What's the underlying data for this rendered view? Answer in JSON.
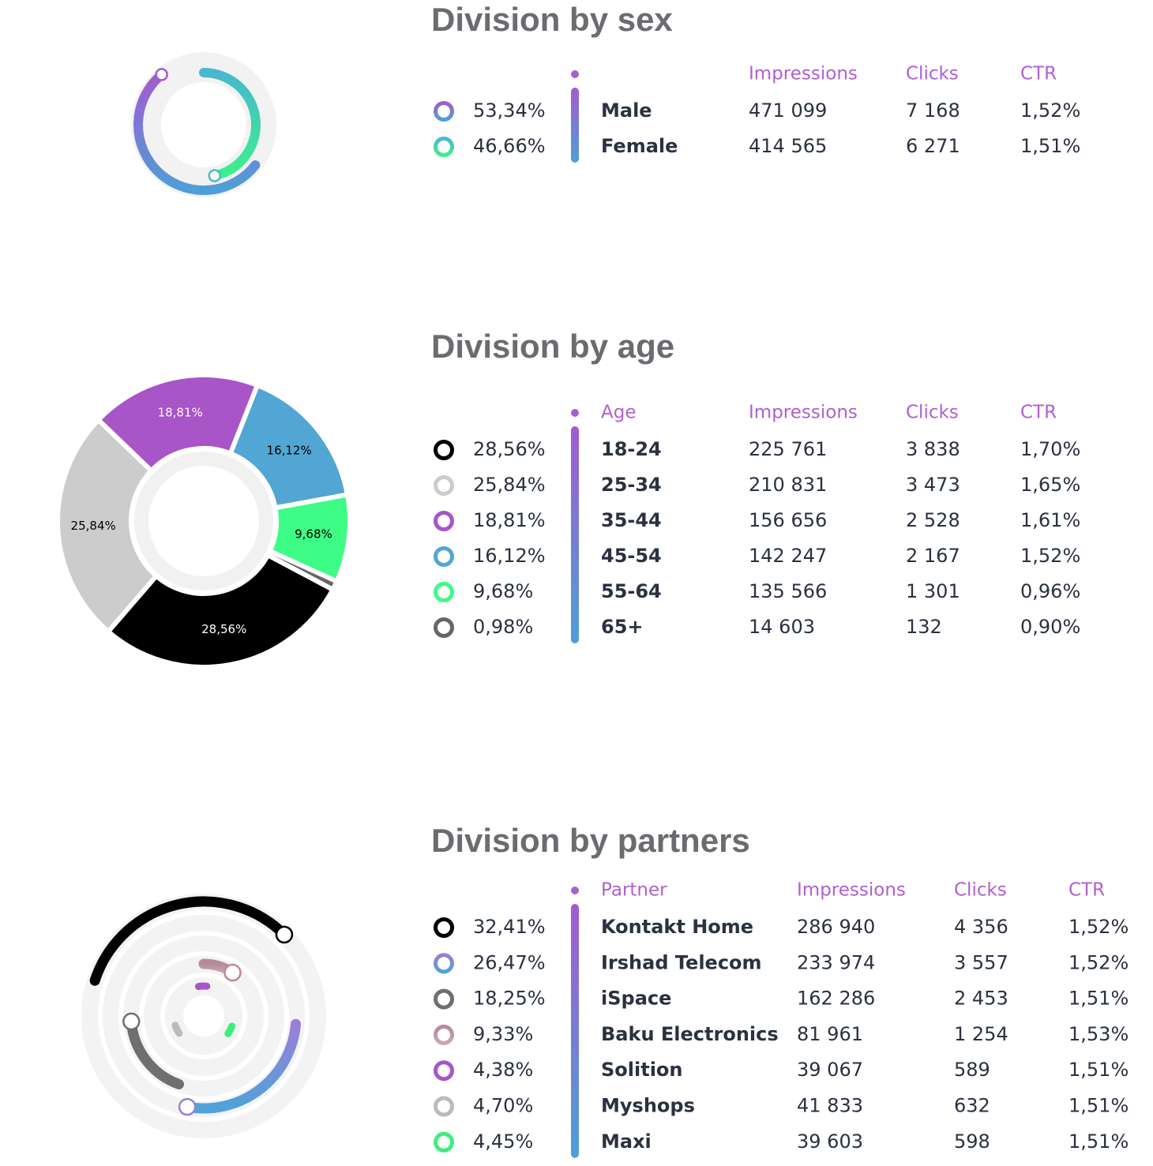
{
  "chart_data": [
    {
      "type": "radial",
      "title": "Division by sex",
      "categories": [
        "Male",
        "Female"
      ],
      "values": [
        53.34,
        46.66
      ],
      "value_labels": [
        "53,34%",
        "46,66%"
      ],
      "colors": [
        [
          "#a25bd0",
          "#4e9fd8"
        ],
        [
          "#48b8cf",
          "#3df08a"
        ]
      ],
      "table": {
        "header": [
          "Impressions",
          "Clicks",
          "CTR"
        ],
        "rows": [
          [
            "471 099",
            "7 168",
            "1,52%"
          ],
          [
            "414 565",
            "6 271",
            "1,51%"
          ]
        ]
      }
    },
    {
      "type": "pie",
      "title": "Division by age",
      "categories": [
        "18-24",
        "25-34",
        "35-44",
        "45-54",
        "55-64",
        "65+"
      ],
      "values": [
        28.56,
        25.84,
        18.81,
        16.12,
        9.68,
        0.98
      ],
      "value_labels": [
        "28,56%",
        "25,84%",
        "18,81%",
        "16,12%",
        "9,68%",
        "0,98%"
      ],
      "colors": [
        "#000000",
        "#cccccc",
        "#a855c8",
        "#52a6d3",
        "#3dfc86",
        "#666666"
      ],
      "table": {
        "name_header": "Age",
        "header": [
          "Impressions",
          "Clicks",
          "CTR"
        ],
        "rows": [
          [
            "225 761",
            "3 838",
            "1,70%"
          ],
          [
            "210 831",
            "3 473",
            "1,65%"
          ],
          [
            "156 656",
            "2 528",
            "1,61%"
          ],
          [
            "142 247",
            "2 167",
            "1,52%"
          ],
          [
            "135 566",
            "1 301",
            "0,96%"
          ],
          [
            "14 603",
            "132",
            "0,90%"
          ]
        ]
      }
    },
    {
      "type": "radial",
      "title": "Division by partners",
      "categories": [
        "Kontakt Home",
        "Irshad Telecom",
        "iSpace",
        "Baku Electronics",
        "Solition",
        "Myshops",
        "Maxi"
      ],
      "values": [
        32.41,
        26.47,
        18.25,
        9.33,
        4.38,
        4.7,
        4.45
      ],
      "value_labels": [
        "32,41%",
        "26,47%",
        "18,25%",
        "9,33%",
        "4,38%",
        "4,70%",
        "4,45%"
      ],
      "colors": [
        "#000000",
        [
          "#9b7fd6",
          "#4fa3d9"
        ],
        "#6f6f6f",
        [
          "#b58a9c",
          "#c9a7b3"
        ],
        "#a855c8",
        "#bbbbbb",
        "#3dee7a"
      ],
      "table": {
        "name_header": "Partner",
        "header": [
          "Impressions",
          "Clicks",
          "CTR"
        ],
        "rows": [
          [
            "286 940",
            "4 356",
            "1,52%"
          ],
          [
            "233 974",
            "3 557",
            "1,52%"
          ],
          [
            "162 286",
            "2 453",
            "1,51%"
          ],
          [
            "81 961",
            "1 254",
            "1,53%"
          ],
          [
            "39 067",
            "589",
            "1,51%"
          ],
          [
            "41 833",
            "632",
            "1,51%"
          ],
          [
            "39 603",
            "598",
            "1,51%"
          ]
        ]
      }
    }
  ]
}
